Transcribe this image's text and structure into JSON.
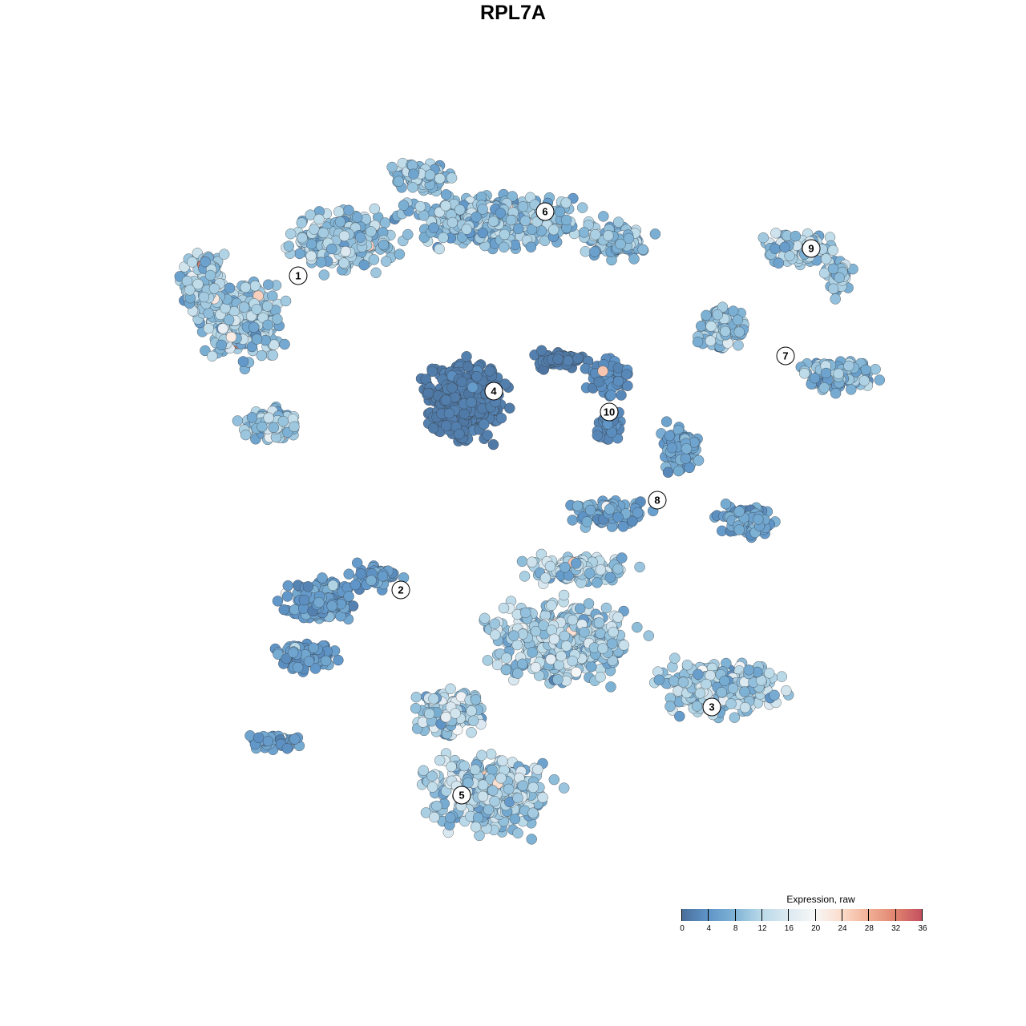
{
  "chart_data": {
    "type": "scatter",
    "title": "RPL7A",
    "xlabel": "",
    "ylabel": "",
    "axes_visible": false,
    "grid": false,
    "color_legend": {
      "title": "Expression, raw",
      "placement": "bottom-right",
      "range": [
        0,
        36
      ],
      "ticks": [
        0,
        4,
        8,
        12,
        16,
        20,
        24,
        28,
        32,
        36
      ],
      "colors": [
        "#4a6f9a",
        "#5f95c8",
        "#7fb3d5",
        "#b9d9e8",
        "#dce9f1",
        "#f7f7f7",
        "#fbdccb",
        "#f2b096",
        "#e08470",
        "#c4505f"
      ]
    },
    "clusters": [
      {
        "label": "1",
        "centroid": [
          -6.7,
          7.4
        ],
        "mean_expression": 10,
        "max_expression": 34
      },
      {
        "label": "2",
        "centroid": [
          -3.5,
          -2.4
        ],
        "mean_expression": 5,
        "max_expression": 24
      },
      {
        "label": "3",
        "centroid": [
          6.2,
          -6.05
        ],
        "mean_expression": 11,
        "max_expression": 34
      },
      {
        "label": "4",
        "centroid": [
          -0.6,
          3.8
        ],
        "mean_expression": 1.5,
        "max_expression": 6
      },
      {
        "label": "5",
        "centroid": [
          -1.6,
          -8.8
        ],
        "mean_expression": 11,
        "max_expression": 34
      },
      {
        "label": "6",
        "centroid": [
          1.0,
          9.4
        ],
        "mean_expression": 9,
        "max_expression": 24
      },
      {
        "label": "7",
        "centroid": [
          8.5,
          4.9
        ],
        "mean_expression": 9,
        "max_expression": 20
      },
      {
        "label": "8",
        "centroid": [
          4.5,
          0.4
        ],
        "mean_expression": 6,
        "max_expression": 26
      },
      {
        "label": "9",
        "centroid": [
          9.3,
          8.25
        ],
        "mean_expression": 10,
        "max_expression": 22
      },
      {
        "label": "10",
        "centroid": [
          3.0,
          3.15
        ],
        "mean_expression": 3,
        "max_expression": 34
      }
    ]
  }
}
